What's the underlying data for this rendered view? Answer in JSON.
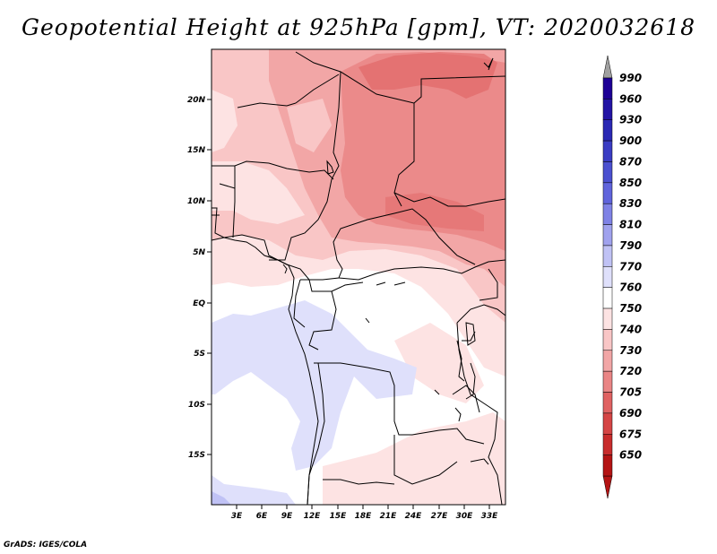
{
  "title": "Geopotential Height at 925hPa [gpm], VT: 2020032618",
  "footer": "GrADS: IGES/COLA",
  "lat_labels": [
    "20N",
    "15N",
    "10N",
    "5N",
    "EQ",
    "5S",
    "10S",
    "15S"
  ],
  "lon_labels": [
    "3E",
    "6E",
    "9E",
    "12E",
    "15E",
    "18E",
    "21E",
    "24E",
    "27E",
    "30E",
    "33E"
  ],
  "colorbar": {
    "top_arrow_color": "#a0a0a0",
    "bottom_arrow_color": "#b41414",
    "levels": [
      {
        "label": "990",
        "color": "#1e0096"
      },
      {
        "label": "960",
        "color": "#2314a5"
      },
      {
        "label": "930",
        "color": "#2a28b4"
      },
      {
        "label": "900",
        "color": "#3a3cc3"
      },
      {
        "label": "870",
        "color": "#4b50d0"
      },
      {
        "label": "850",
        "color": "#6064dc"
      },
      {
        "label": "830",
        "color": "#7f82e6"
      },
      {
        "label": "810",
        "color": "#a0a2ee"
      },
      {
        "label": "790",
        "color": "#c0c2f5"
      },
      {
        "label": "770",
        "color": "#dfe0fb"
      },
      {
        "label": "760",
        "color": "#ffffff"
      },
      {
        "label": "750",
        "color": "#fde3e3"
      },
      {
        "label": "740",
        "color": "#f9c6c6"
      },
      {
        "label": "730",
        "color": "#f2a6a6"
      },
      {
        "label": "720",
        "color": "#ea8585"
      },
      {
        "label": "705",
        "color": "#e06262"
      },
      {
        "label": "690",
        "color": "#d54545"
      },
      {
        "label": "675",
        "color": "#c82c2c"
      },
      {
        "label": "650",
        "color": "#b41414"
      }
    ]
  }
}
